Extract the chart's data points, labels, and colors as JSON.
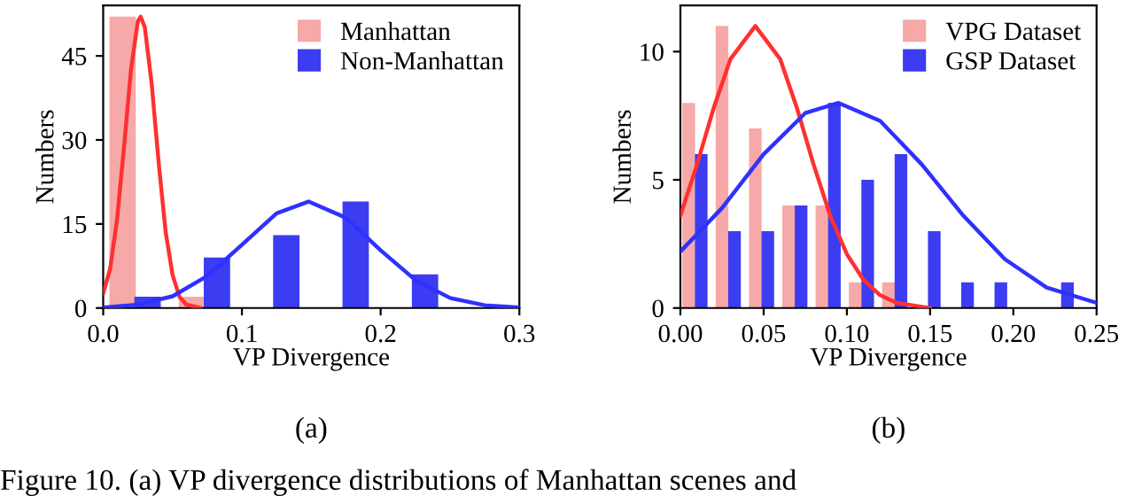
{
  "chart_data": [
    {
      "type": "bar",
      "xlabel": "VP Divergence",
      "ylabel": "Numbers",
      "xlim": [
        0,
        0.3
      ],
      "ylim": [
        0,
        54
      ],
      "xticks": [
        {
          "value": 0,
          "label": "0.0"
        },
        0.1,
        0.2,
        0.3
      ],
      "yticks": [
        0,
        15,
        30,
        45
      ],
      "grid": false,
      "legend": "top right",
      "annotations": [
        "(a)"
      ],
      "series": [
        {
          "name": "Manhattan",
          "color": "#f7a8a8",
          "x": [
            0.014,
            0.064
          ],
          "values": [
            52,
            2
          ]
        },
        {
          "name": "Non-Manhattan",
          "color": "#3c3cf2",
          "x": [
            0.032,
            0.082,
            0.132,
            0.182,
            0.232
          ],
          "values": [
            2,
            9,
            13,
            19,
            6
          ]
        },
        {
          "type": "line",
          "color": "#ff3030",
          "x": [
            0,
            0.005,
            0.01,
            0.015,
            0.02,
            0.025,
            0.027,
            0.03,
            0.035,
            0.04,
            0.045,
            0.05,
            0.055,
            0.06,
            0.07
          ],
          "values": [
            2.6,
            7.0,
            15.8,
            28.7,
            42.5,
            51.2,
            52,
            50.1,
            39.9,
            25.9,
            13.6,
            5.9,
            2.0,
            0.6,
            0.0
          ]
        },
        {
          "type": "line",
          "color": "#3030ff",
          "x": [
            0,
            0.025,
            0.05,
            0.075,
            0.1,
            0.125,
            0.148,
            0.175,
            0.2,
            0.225,
            0.25,
            0.275,
            0.3
          ],
          "values": [
            0.1,
            0.6,
            2.1,
            5.7,
            11.3,
            16.9,
            19,
            16.1,
            10.3,
            5.0,
            1.8,
            0.5,
            0.1
          ]
        }
      ]
    },
    {
      "type": "bar",
      "xlabel": "VP Divergence",
      "ylabel": "Numbers",
      "xlim": [
        0,
        0.25
      ],
      "ylim": [
        0,
        11.8
      ],
      "xticks": [
        {
          "value": 0,
          "label": "0.00"
        },
        {
          "value": 0.05,
          "label": "0.05"
        },
        {
          "value": 0.1,
          "label": "0.10"
        },
        {
          "value": 0.15,
          "label": "0.15"
        },
        {
          "value": 0.2,
          "label": "0.20"
        },
        {
          "value": 0.25,
          "label": "0.25"
        }
      ],
      "yticks": [
        0,
        5,
        10
      ],
      "grid": false,
      "legend": "top right",
      "annotations": [
        "(b)",
        "Figure 10. (a) VP divergence distributions of Manhattan scenes and"
      ],
      "series": [
        {
          "name": "VPG Dataset",
          "color": "#f7a8a8",
          "x": [
            0.005,
            0.025,
            0.045,
            0.065,
            0.085,
            0.105,
            0.125
          ],
          "values": [
            8,
            11,
            7,
            4,
            4,
            1,
            1
          ]
        },
        {
          "name": "GSP Dataset",
          "color": "#3c3cf2",
          "x": [
            0.0125,
            0.0325,
            0.0525,
            0.0725,
            0.0925,
            0.1125,
            0.1325,
            0.1525,
            0.1725,
            0.1925,
            0.2325
          ],
          "values": [
            6,
            3,
            3,
            4,
            8,
            5,
            6,
            3,
            1,
            1,
            1
          ]
        },
        {
          "type": "line",
          "color": "#ff3030",
          "x": [
            0,
            0.01,
            0.02,
            0.03,
            0.045,
            0.06,
            0.07,
            0.08,
            0.09,
            0.1,
            0.11,
            0.12,
            0.13,
            0.14,
            0.15
          ],
          "values": [
            3.6,
            5.6,
            7.8,
            9.7,
            11,
            9.7,
            7.8,
            5.6,
            3.6,
            2.1,
            1.1,
            0.5,
            0.2,
            0.1,
            0.0
          ]
        },
        {
          "type": "line",
          "color": "#3030ff",
          "x": [
            0,
            0.025,
            0.05,
            0.075,
            0.095,
            0.12,
            0.145,
            0.17,
            0.195,
            0.22,
            0.25
          ],
          "values": [
            2.2,
            3.9,
            6.0,
            7.6,
            8,
            7.3,
            5.6,
            3.6,
            1.9,
            0.8,
            0.2
          ]
        }
      ]
    }
  ]
}
